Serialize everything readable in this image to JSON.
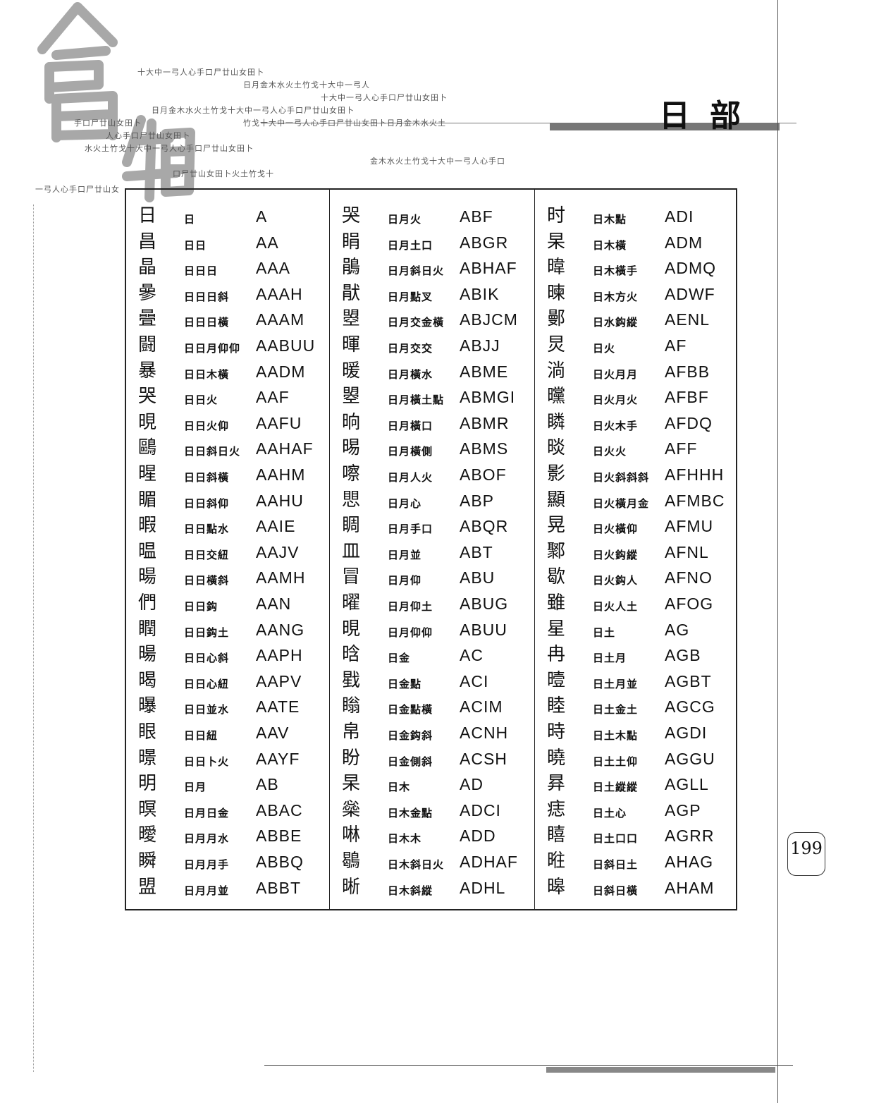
{
  "logo": "倉頡",
  "decorative_lines": [
    "十大中一弓人心手口尸廿山女田卜",
    "日月金木水火土竹戈十大中一弓人",
    "十大中一弓人心手口尸廿山女田卜",
    "日月金木水火土竹戈十大中一弓人心手口尸廿山女田卜",
    "竹戈十大中一弓人心手口尸廿山女田卜日月金木水火土",
    "手口尸廿山女田卜",
    "人心手口尸廿山女田卜",
    "水火土竹戈十大中一弓人心手口尸廿山女田卜",
    "金木水火土竹戈十大中一弓人心手口",
    "口尸廿山女田卜火土竹戈十",
    "一弓人心手口尸廿山女"
  ],
  "section_title": "日部",
  "page_number": "199",
  "columns": [
    [
      {
        "char": "日",
        "name": "日",
        "code": "A"
      },
      {
        "char": "昌",
        "name": "日日",
        "code": "AA"
      },
      {
        "char": "晶",
        "name": "日日日",
        "code": "AAA"
      },
      {
        "char": "曑",
        "name": "日日日斜",
        "code": "AAAH"
      },
      {
        "char": "曡",
        "name": "日日日橫",
        "code": "AAAM"
      },
      {
        "char": "闘",
        "name": "日日月仰仰",
        "code": "AABUU"
      },
      {
        "char": "暴",
        "name": "日日木橫",
        "code": "AADM"
      },
      {
        "char": "哭",
        "name": "日日火",
        "code": "AAF"
      },
      {
        "char": "晛",
        "name": "日日火仰",
        "code": "AAFU"
      },
      {
        "char": "鷗",
        "name": "日日斜日火",
        "code": "AAHAF"
      },
      {
        "char": "暒",
        "name": "日日斜橫",
        "code": "AAHM"
      },
      {
        "char": "睸",
        "name": "日日斜仰",
        "code": "AAHU"
      },
      {
        "char": "暇",
        "name": "日日點水",
        "code": "AAIE"
      },
      {
        "char": "㬈",
        "name": "日日交紐",
        "code": "AAJV"
      },
      {
        "char": "暘",
        "name": "日日橫斜",
        "code": "AAMH"
      },
      {
        "char": "們",
        "name": "日日鈎",
        "code": "AAN"
      },
      {
        "char": "瞤",
        "name": "日日鈎土",
        "code": "AANG"
      },
      {
        "char": "暘",
        "name": "日日心斜",
        "code": "AAPH"
      },
      {
        "char": "暍",
        "name": "日日心紐",
        "code": "AAPV"
      },
      {
        "char": "曝",
        "name": "日日並水",
        "code": "AATE"
      },
      {
        "char": "眼",
        "name": "日日紐",
        "code": "AAV"
      },
      {
        "char": "暻",
        "name": "日日卜火",
        "code": "AAYF"
      },
      {
        "char": "明",
        "name": "日月",
        "code": "AB"
      },
      {
        "char": "暝",
        "name": "日月日金",
        "code": "ABAC"
      },
      {
        "char": "曖",
        "name": "日月月水",
        "code": "ABBE"
      },
      {
        "char": "瞬",
        "name": "日月月手",
        "code": "ABBQ"
      },
      {
        "char": "盟",
        "name": "日月月並",
        "code": "ABBT"
      }
    ],
    [
      {
        "char": "哭",
        "name": "日月火",
        "code": "ABF"
      },
      {
        "char": "睊",
        "name": "日月土口",
        "code": "ABGR"
      },
      {
        "char": "鵑",
        "name": "日月斜日火",
        "code": "ABHAF"
      },
      {
        "char": "猒",
        "name": "日月點叉",
        "code": "ABIK"
      },
      {
        "char": "曌",
        "name": "日月交金橫",
        "code": "ABJCM"
      },
      {
        "char": "暉",
        "name": "日月交交",
        "code": "ABJJ"
      },
      {
        "char": "暖",
        "name": "日月橫水",
        "code": "ABME"
      },
      {
        "char": "曌",
        "name": "日月橫土點",
        "code": "ABMGI"
      },
      {
        "char": "晌",
        "name": "日月橫口",
        "code": "ABMR"
      },
      {
        "char": "晹",
        "name": "日月橫側",
        "code": "ABMS"
      },
      {
        "char": "嚓",
        "name": "日月人火",
        "code": "ABOF"
      },
      {
        "char": "愳",
        "name": "日月心",
        "code": "ABP"
      },
      {
        "char": "睭",
        "name": "日月手口",
        "code": "ABQR"
      },
      {
        "char": "皿",
        "name": "日月並",
        "code": "ABT"
      },
      {
        "char": "冒",
        "name": "日月仰",
        "code": "ABU"
      },
      {
        "char": "曜",
        "name": "日月仰土",
        "code": "ABUG"
      },
      {
        "char": "晛",
        "name": "日月仰仰",
        "code": "ABUU"
      },
      {
        "char": "晗",
        "name": "日金",
        "code": "AC"
      },
      {
        "char": "戥",
        "name": "日金點",
        "code": "ACI"
      },
      {
        "char": "瞈",
        "name": "日金點橫",
        "code": "ACIM"
      },
      {
        "char": "帛",
        "name": "日金鈎斜",
        "code": "ACNH"
      },
      {
        "char": "盼",
        "name": "日金側斜",
        "code": "ACSH"
      },
      {
        "char": "杲",
        "name": "日木",
        "code": "AD"
      },
      {
        "char": "橤",
        "name": "日木金點",
        "code": "ADCI"
      },
      {
        "char": "啉",
        "name": "日木木",
        "code": "ADD"
      },
      {
        "char": "鶡",
        "name": "日木斜日火",
        "code": "ADHAF"
      },
      {
        "char": "晰",
        "name": "日木斜縱",
        "code": "ADHL"
      }
    ],
    [
      {
        "char": "时",
        "name": "日木點",
        "code": "ADI"
      },
      {
        "char": "杲",
        "name": "日木橫",
        "code": "ADM"
      },
      {
        "char": "暐",
        "name": "日木橫手",
        "code": "ADMQ"
      },
      {
        "char": "暕",
        "name": "日木方火",
        "code": "ADWF"
      },
      {
        "char": "鄤",
        "name": "日水鈎縱",
        "code": "AENL"
      },
      {
        "char": "炅",
        "name": "日火",
        "code": "AF"
      },
      {
        "char": "淌",
        "name": "日火月月",
        "code": "AFBB"
      },
      {
        "char": "曭",
        "name": "日火月火",
        "code": "AFBF"
      },
      {
        "char": "瞵",
        "name": "日火木手",
        "code": "AFDQ"
      },
      {
        "char": "晱",
        "name": "日火火",
        "code": "AFF"
      },
      {
        "char": "影",
        "name": "日火斜斜斜",
        "code": "AFHHH"
      },
      {
        "char": "顯",
        "name": "日火橫月金",
        "code": "AFMBC"
      },
      {
        "char": "晃",
        "name": "日火橫仰",
        "code": "AFMU"
      },
      {
        "char": "鄹",
        "name": "日火鈎縱",
        "code": "AFNL"
      },
      {
        "char": "歇",
        "name": "日火鈎人",
        "code": "AFNO"
      },
      {
        "char": "雖",
        "name": "日火人土",
        "code": "AFOG"
      },
      {
        "char": "星",
        "name": "日土",
        "code": "AG"
      },
      {
        "char": "冉",
        "name": "日土月",
        "code": "AGB"
      },
      {
        "char": "曀",
        "name": "日土月並",
        "code": "AGBT"
      },
      {
        "char": "睦",
        "name": "日土金土",
        "code": "AGCG"
      },
      {
        "char": "時",
        "name": "日土木點",
        "code": "AGDI"
      },
      {
        "char": "曉",
        "name": "日土土仰",
        "code": "AGGU"
      },
      {
        "char": "昪",
        "name": "日土縱縱",
        "code": "AGLL"
      },
      {
        "char": "痣",
        "name": "日土心",
        "code": "AGP"
      },
      {
        "char": "瞦",
        "name": "日土口口",
        "code": "AGRR"
      },
      {
        "char": "暀",
        "name": "日斜日土",
        "code": "AHAG"
      },
      {
        "char": "暤",
        "name": "日斜日橫",
        "code": "AHAM"
      }
    ]
  ]
}
